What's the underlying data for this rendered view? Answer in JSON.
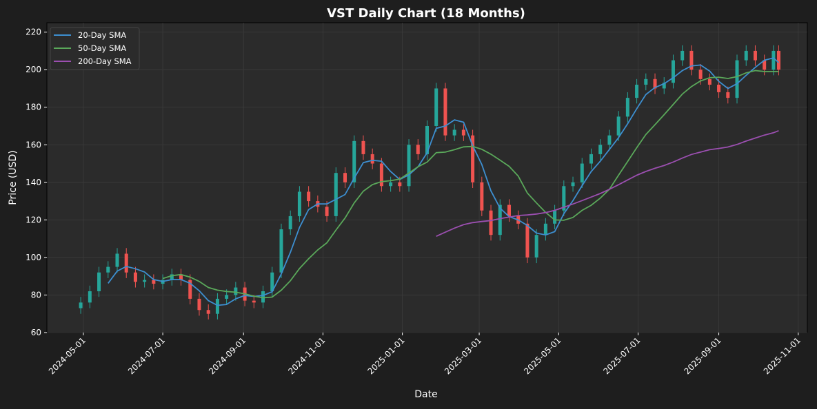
{
  "chart_data": {
    "type": "line",
    "title": "VST Daily Chart (18 Months)",
    "xlabel": "Date",
    "ylabel": "Price (USD)",
    "ylim": [
      60,
      225
    ],
    "xlim": [
      "2024-04-03",
      "2025-11-08"
    ],
    "yticks": [
      60,
      80,
      100,
      120,
      140,
      160,
      180,
      200,
      220
    ],
    "xticks": [
      "2024-05-01",
      "2024-07-01",
      "2024-09-01",
      "2024-11-01",
      "2025-01-01",
      "2025-03-01",
      "2025-05-01",
      "2025-07-01",
      "2025-09-01",
      "2025-11-01"
    ],
    "grid": true,
    "legend_position": "top-left",
    "legend": [
      "20-Day SMA",
      "50-Day SMA",
      "200-Day SMA"
    ],
    "colors": {
      "up": "#26a69a",
      "down": "#ef5350",
      "sma20": "#3d8fd1",
      "sma50": "#5aa85a",
      "sma200": "#9b4fb0",
      "plot_bg": "#2b2b2b",
      "page_bg": "#1e1e1e"
    },
    "sma_windows_weeks": {
      "sma20": 4,
      "sma50": 10,
      "sma200": 40
    },
    "prices": {
      "dates": [
        "2024-04-29",
        "2024-05-06",
        "2024-05-13",
        "2024-05-20",
        "2024-05-27",
        "2024-06-03",
        "2024-06-10",
        "2024-06-17",
        "2024-06-24",
        "2024-07-01",
        "2024-07-08",
        "2024-07-15",
        "2024-07-22",
        "2024-07-29",
        "2024-08-05",
        "2024-08-12",
        "2024-08-19",
        "2024-08-26",
        "2024-09-02",
        "2024-09-09",
        "2024-09-16",
        "2024-09-23",
        "2024-09-30",
        "2024-10-07",
        "2024-10-14",
        "2024-10-21",
        "2024-10-28",
        "2024-11-04",
        "2024-11-11",
        "2024-11-18",
        "2024-11-25",
        "2024-12-02",
        "2024-12-09",
        "2024-12-16",
        "2024-12-23",
        "2024-12-30",
        "2025-01-06",
        "2025-01-13",
        "2025-01-20",
        "2025-01-27",
        "2025-02-03",
        "2025-02-10",
        "2025-02-17",
        "2025-02-24",
        "2025-03-03",
        "2025-03-10",
        "2025-03-17",
        "2025-03-24",
        "2025-03-31",
        "2025-04-07",
        "2025-04-14",
        "2025-04-21",
        "2025-04-28",
        "2025-05-05",
        "2025-05-12",
        "2025-05-19",
        "2025-05-26",
        "2025-06-02",
        "2025-06-09",
        "2025-06-16",
        "2025-06-23",
        "2025-06-30",
        "2025-07-07",
        "2025-07-14",
        "2025-07-21",
        "2025-07-28",
        "2025-08-04",
        "2025-08-11",
        "2025-08-18",
        "2025-08-25",
        "2025-09-01",
        "2025-09-08",
        "2025-09-15",
        "2025-09-22",
        "2025-09-29",
        "2025-10-06",
        "2025-10-13",
        "2025-10-17"
      ],
      "close": [
        76,
        82,
        92,
        95,
        102,
        92,
        87,
        88,
        86,
        88,
        91,
        88,
        78,
        72,
        70,
        78,
        80,
        84,
        77,
        76,
        82,
        92,
        115,
        122,
        135,
        130,
        127,
        122,
        145,
        140,
        162,
        155,
        150,
        138,
        140,
        138,
        160,
        155,
        170,
        190,
        165,
        168,
        165,
        140,
        125,
        112,
        128,
        122,
        118,
        100,
        112,
        118,
        125,
        138,
        140,
        150,
        155,
        160,
        165,
        175,
        185,
        192,
        195,
        190,
        193,
        205,
        210,
        200,
        195,
        192,
        188,
        185,
        205,
        210,
        205,
        200,
        210,
        200
      ]
    }
  }
}
